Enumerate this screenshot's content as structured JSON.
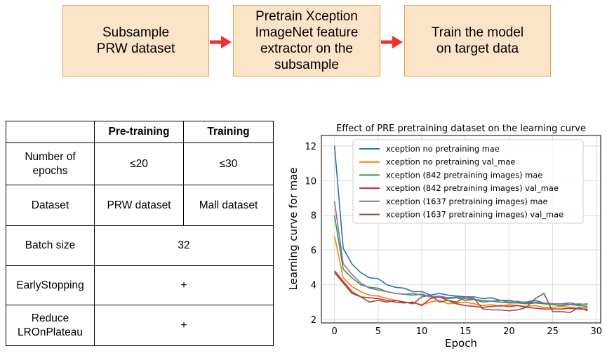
{
  "flow": {
    "steps": [
      "Subsample\nPRW dataset",
      "Pretrain Xception\nImageNet feature\nextractor on the\nsubsample",
      "Train the model\non target data"
    ],
    "box_fill": "#fce4c8",
    "box_border": "#e0a050",
    "arrow_color": "#f03030"
  },
  "table": {
    "headers": [
      "",
      "Pre-training",
      "Training"
    ],
    "rows": [
      {
        "label": "Number of\nepochs",
        "pretraining": "≤20",
        "training": "≤30"
      },
      {
        "label": "Dataset",
        "pretraining": "PRW dataset",
        "training": "Mall dataset"
      },
      {
        "label": "Batch size",
        "merged": "32"
      },
      {
        "label": "EarlyStopping",
        "merged": "+"
      },
      {
        "label": "Reduce\nLROnPlateau",
        "merged": "+"
      }
    ]
  },
  "chart_data": {
    "type": "line",
    "title": "Effect of PRE pretraining dataset on the learning curve",
    "xlabel": "Epoch",
    "ylabel": "Learning curve for mae",
    "xlim": [
      -1.5,
      30.5
    ],
    "ylim": [
      1.8,
      12.6
    ],
    "xticks": [
      0,
      5,
      10,
      15,
      20,
      25,
      30
    ],
    "yticks": [
      2,
      4,
      6,
      8,
      10,
      12
    ],
    "grid": true,
    "legend_position": "top-right",
    "x": [
      0,
      1,
      2,
      3,
      4,
      5,
      6,
      7,
      8,
      9,
      10,
      11,
      12,
      13,
      14,
      15,
      16,
      17,
      18,
      19,
      20,
      21,
      22,
      23,
      24,
      25,
      26,
      27,
      28,
      29
    ],
    "series": [
      {
        "name": "xception no pretraining mae",
        "color": "#1f77b4",
        "values": [
          12.0,
          6.1,
          5.2,
          4.7,
          4.4,
          4.35,
          4.0,
          3.85,
          3.8,
          3.6,
          3.6,
          3.4,
          3.5,
          3.4,
          3.35,
          3.3,
          3.3,
          3.2,
          3.25,
          3.1,
          3.1,
          3.0,
          3.0,
          3.1,
          2.95,
          2.9,
          2.9,
          2.95,
          2.85,
          2.9
        ]
      },
      {
        "name": "xception no pretraining val_mae",
        "color": "#ff7f0e",
        "values": [
          6.8,
          4.4,
          3.9,
          3.6,
          3.4,
          3.35,
          3.2,
          3.1,
          3.0,
          2.95,
          2.85,
          3.0,
          3.1,
          2.9,
          2.95,
          3.0,
          2.9,
          2.8,
          2.85,
          2.75,
          2.85,
          2.8,
          2.75,
          2.8,
          2.7,
          2.7,
          2.75,
          2.7,
          2.65,
          2.7
        ]
      },
      {
        "name": "xception (842 pretraining images) mae",
        "color": "#2ca02c",
        "values": [
          8.0,
          4.9,
          4.4,
          4.0,
          3.85,
          3.8,
          3.6,
          3.5,
          3.45,
          3.4,
          3.45,
          3.3,
          3.3,
          3.2,
          3.25,
          3.1,
          3.15,
          3.0,
          3.05,
          3.0,
          2.95,
          2.95,
          2.9,
          2.95,
          2.9,
          2.85,
          2.8,
          2.85,
          2.8,
          2.75
        ]
      },
      {
        "name": "xception (842 pretraining images) val_mae",
        "color": "#d62728",
        "values": [
          4.8,
          4.2,
          3.6,
          3.3,
          3.25,
          3.2,
          3.1,
          3.0,
          2.95,
          3.0,
          2.8,
          3.2,
          3.3,
          3.1,
          2.9,
          2.8,
          2.75,
          2.7,
          2.75,
          2.8,
          2.75,
          2.8,
          2.7,
          2.65,
          2.6,
          2.6,
          2.6,
          2.65,
          2.6,
          2.6
        ]
      },
      {
        "name": "xception (1637 pretraining images) mae",
        "color": "#9467bd",
        "values": [
          8.8,
          5.2,
          4.6,
          4.1,
          3.8,
          3.7,
          3.6,
          3.5,
          3.45,
          3.5,
          3.4,
          3.3,
          3.35,
          3.25,
          3.3,
          3.2,
          3.15,
          3.1,
          3.05,
          3.1,
          3.0,
          3.05,
          2.95,
          3.0,
          2.95,
          2.9,
          2.9,
          2.85,
          2.9,
          2.85
        ]
      },
      {
        "name": "xception (1637 pretraining images) val_mae",
        "color": "#8c564b",
        "values": [
          4.7,
          4.1,
          3.5,
          3.3,
          3.0,
          3.1,
          3.0,
          3.1,
          3.0,
          2.9,
          3.3,
          3.4,
          3.0,
          3.1,
          3.0,
          3.3,
          3.2,
          2.6,
          2.55,
          2.55,
          2.5,
          2.55,
          2.7,
          3.2,
          3.5,
          2.45,
          2.45,
          2.4,
          2.7,
          2.5
        ]
      }
    ]
  }
}
